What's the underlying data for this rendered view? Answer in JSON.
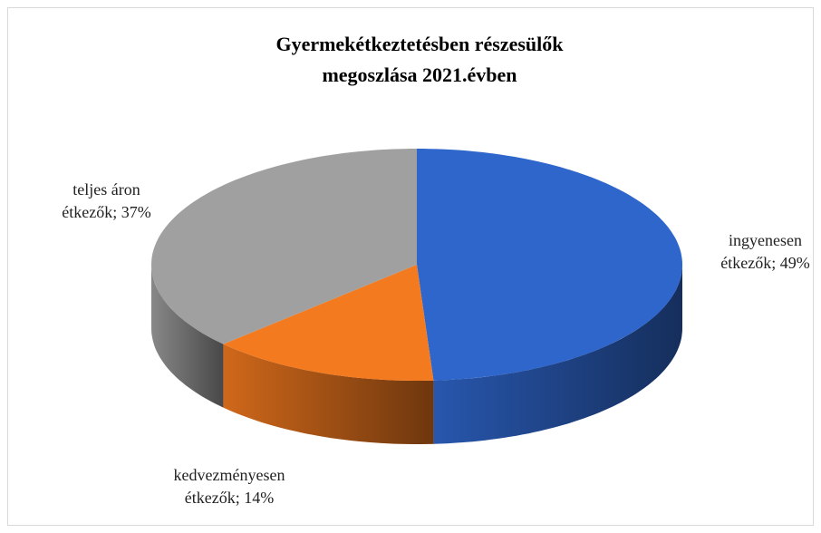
{
  "chart_data": {
    "type": "pie3d",
    "title": "Gyermekétkeztetésben részesülők megoszlása 2021.évben",
    "values": [
      49,
      14,
      37
    ],
    "value_labels": [
      "ingyenesen étkezők; 49%",
      "kedvezményesen étkezők; 14%",
      "teljes áron étkezők; 37%"
    ],
    "colors": [
      "#2f66cc",
      "#f47a1f",
      "#a0a0a0"
    ]
  }
}
